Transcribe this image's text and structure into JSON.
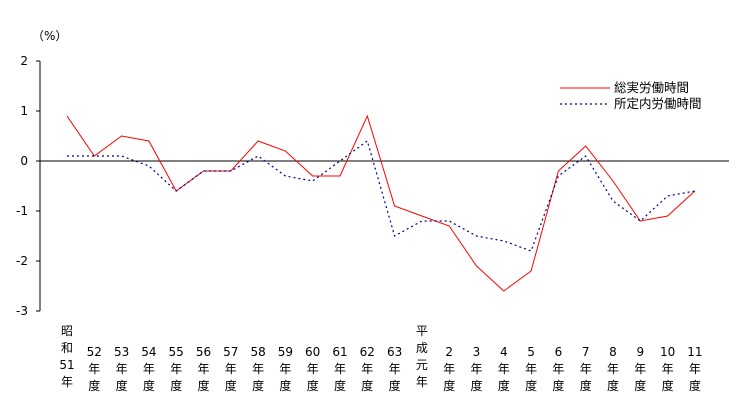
{
  "chart_data": {
    "type": "line",
    "title": "",
    "xlabel": "",
    "ylabel": "（%）",
    "ylim": [
      -3,
      2
    ],
    "yticks": [
      2,
      1,
      0,
      -1,
      -2,
      -3
    ],
    "ytick_labels": [
      "2",
      "1",
      "0",
      "-1",
      "-2",
      "-3"
    ],
    "grid": false,
    "legend_position": "top-right",
    "categories": [
      [
        "昭",
        "和",
        "51",
        "年"
      ],
      [
        "52",
        "年",
        "度"
      ],
      [
        "53",
        "年",
        "度"
      ],
      [
        "54",
        "年",
        "度"
      ],
      [
        "55",
        "年",
        "度"
      ],
      [
        "56",
        "年",
        "度"
      ],
      [
        "57",
        "年",
        "度"
      ],
      [
        "58",
        "年",
        "度"
      ],
      [
        "59",
        "年",
        "度"
      ],
      [
        "60",
        "年",
        "度"
      ],
      [
        "61",
        "年",
        "度"
      ],
      [
        "62",
        "年",
        "度"
      ],
      [
        "63",
        "年",
        "度"
      ],
      [
        "平",
        "成",
        "元",
        "年"
      ],
      [
        "2",
        "年",
        "度"
      ],
      [
        "3",
        "年",
        "度"
      ],
      [
        "4",
        "年",
        "度"
      ],
      [
        "5",
        "年",
        "度"
      ],
      [
        "6",
        "年",
        "度"
      ],
      [
        "7",
        "年",
        "度"
      ],
      [
        "8",
        "年",
        "度"
      ],
      [
        "9",
        "年",
        "度"
      ],
      [
        "10",
        "年",
        "度"
      ],
      [
        "11",
        "年",
        "度"
      ]
    ],
    "series": [
      {
        "name": "総実労働時間",
        "color": "#ff0000",
        "style": "solid",
        "values": [
          0.9,
          0.1,
          0.5,
          0.4,
          -0.6,
          -0.2,
          -0.2,
          0.4,
          0.2,
          -0.3,
          -0.3,
          0.9,
          -0.9,
          -1.1,
          -1.3,
          -2.1,
          -2.6,
          -2.2,
          -0.2,
          0.3,
          -0.4,
          -1.2,
          -1.1,
          -0.6
        ]
      },
      {
        "name": "所定内労働時間",
        "color": "#00008b",
        "style": "dotted",
        "values": [
          0.1,
          0.1,
          0.1,
          -0.1,
          -0.6,
          -0.2,
          -0.2,
          0.1,
          -0.3,
          -0.4,
          0.0,
          0.4,
          -1.5,
          -1.2,
          -1.2,
          -1.5,
          -1.6,
          -1.8,
          -0.3,
          0.1,
          -0.8,
          -1.2,
          -0.7,
          -0.6
        ]
      }
    ]
  }
}
